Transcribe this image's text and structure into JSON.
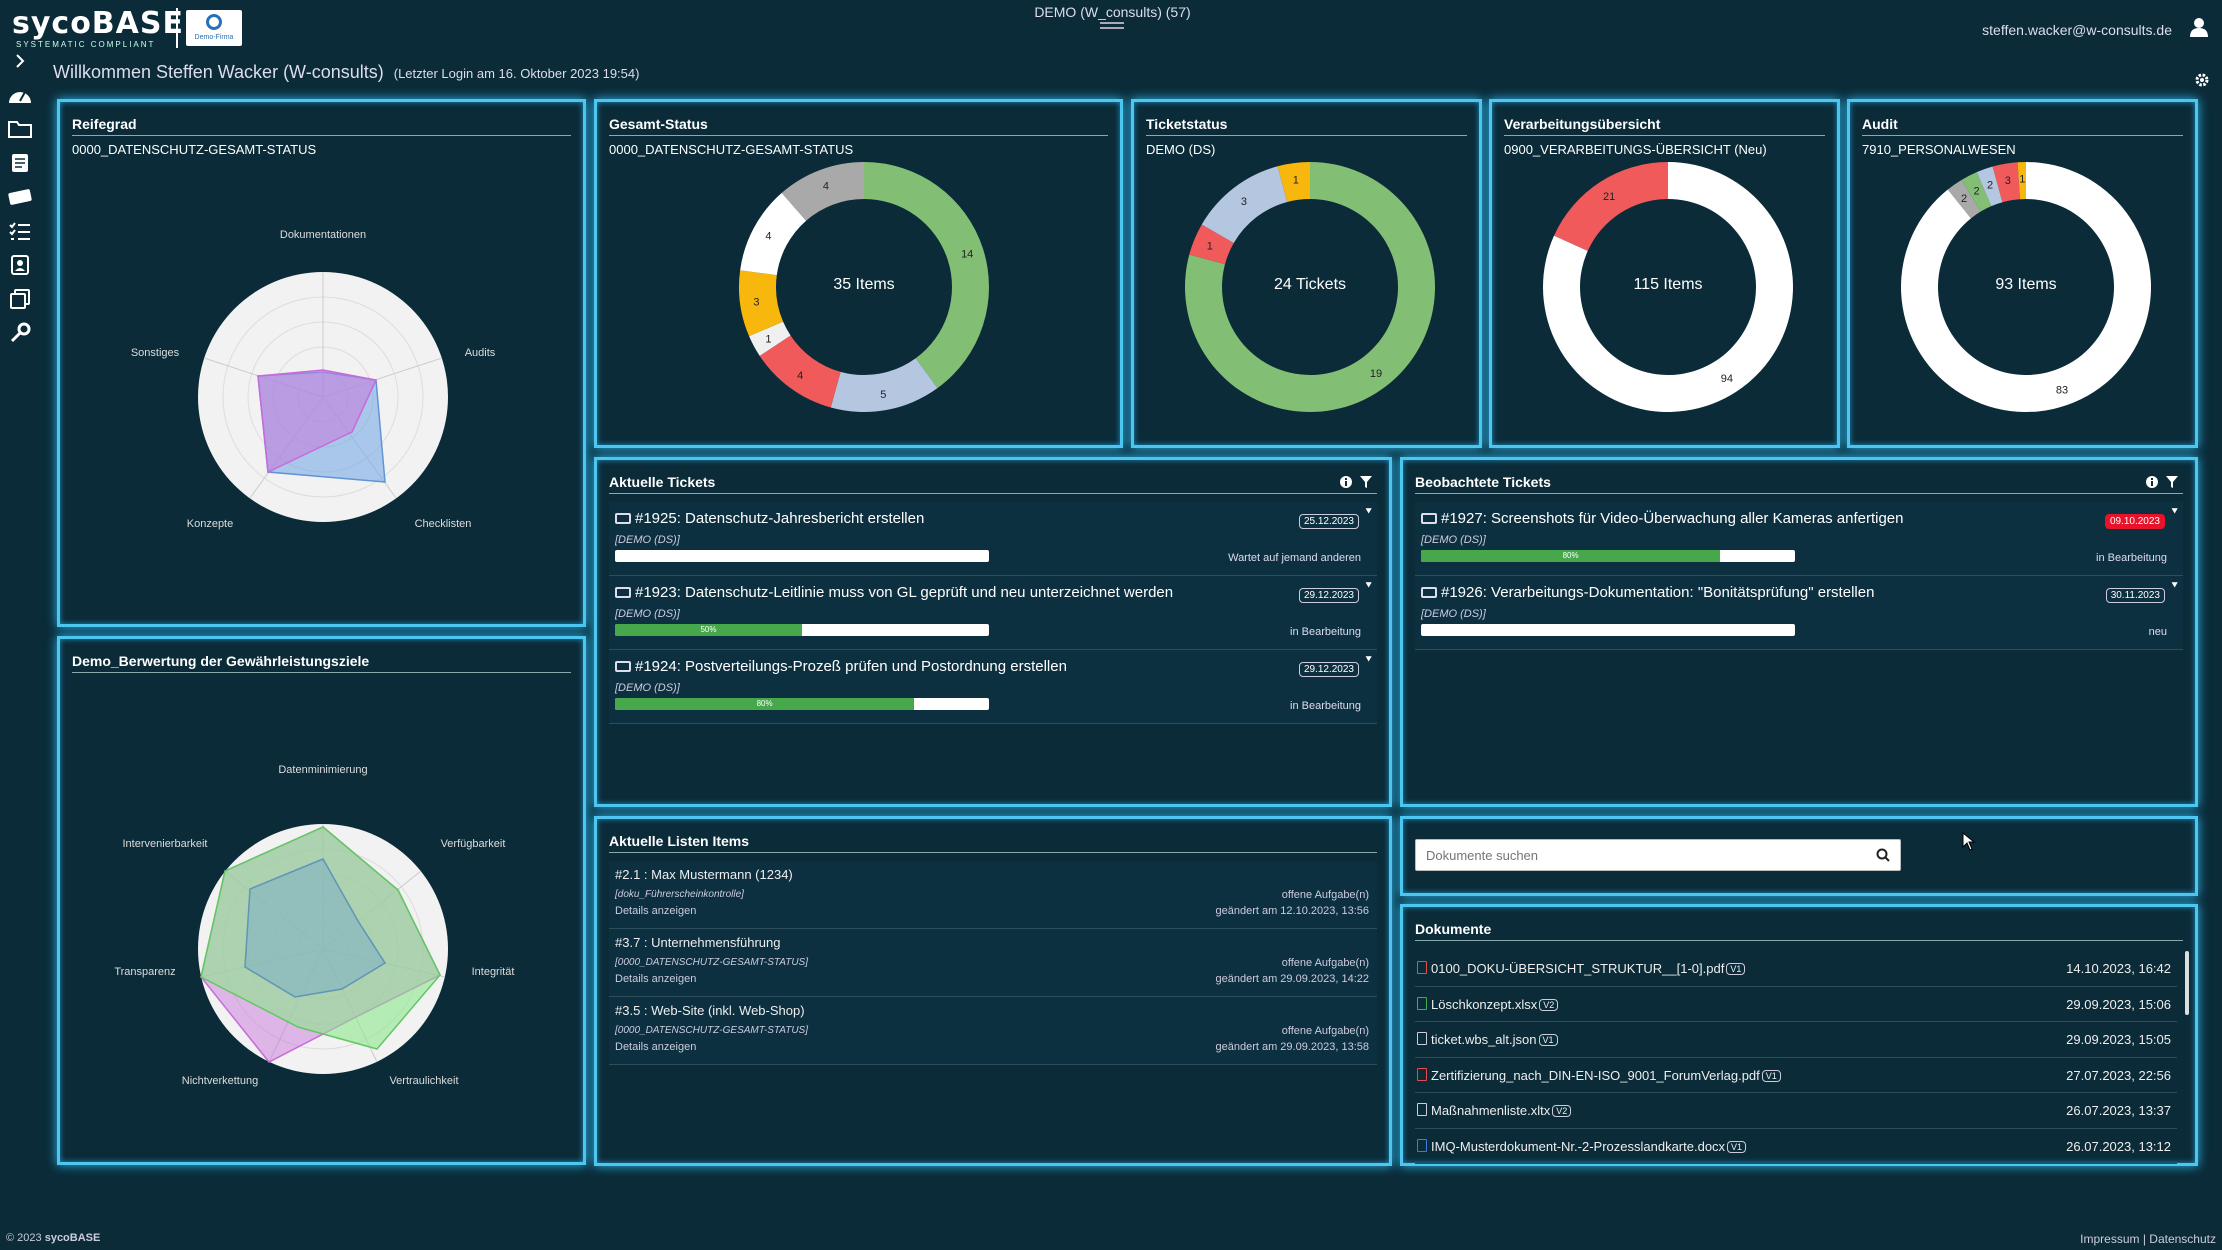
{
  "header": {
    "brand": "sycoBASE",
    "brand_sub": "SYSTEMATIC COMPLIANT",
    "firm_logo_text": "Demo-Firma",
    "tenant": "DEMO (W_consults) (57)",
    "user_email": "steffen.wacker@w-consults.de",
    "welcome": "Willkommen Steffen Wacker (W-consults)",
    "last_login": "(Letzter Login am 16. Oktober 2023 19:54)"
  },
  "sidebar": [
    "chevron-right",
    "dashboard",
    "folder",
    "document",
    "ticket",
    "list",
    "contact",
    "copy",
    "wrench"
  ],
  "reifegrad": {
    "title": "Reifegrad",
    "subtitle": "0000_DATENSCHUTZ-GESAMT-STATUS",
    "axes": [
      "Dokumentationen",
      "Audits",
      "Checklisten",
      "Konzepte",
      "Sonstiges"
    ]
  },
  "gesamt": {
    "title": "Gesamt-Status",
    "subtitle": "0000_DATENSCHUTZ-GESAMT-STATUS",
    "center": "35 Items",
    "segments": [
      {
        "value": 14,
        "color": "#82bf74"
      },
      {
        "value": 5,
        "color": "#b4c6e0"
      },
      {
        "value": 4,
        "color": "#f05a5a"
      },
      {
        "value": 1,
        "color": "#f0f0f0"
      },
      {
        "value": 3,
        "color": "#f8b70c"
      },
      {
        "value": 4,
        "color": "#ffffff"
      },
      {
        "value": 4,
        "color": "#a9a9a9"
      }
    ]
  },
  "ticketstatus": {
    "title": "Ticketstatus",
    "subtitle": "DEMO (DS)",
    "center": "24 Tickets",
    "segments": [
      {
        "value": 19,
        "color": "#82bf74"
      },
      {
        "value": 1,
        "color": "#f05a5a"
      },
      {
        "value": 3,
        "color": "#b4c6e0"
      },
      {
        "value": 1,
        "color": "#f8b70c"
      }
    ]
  },
  "verarbeitung": {
    "title": "Verarbeitungsübersicht",
    "subtitle": "0900_VERARBEITUNGS-ÜBERSICHT (Neu)",
    "center": "115 Items",
    "segments": [
      {
        "value": 94,
        "color": "#ffffff"
      },
      {
        "value": 21,
        "color": "#f05a5a"
      }
    ]
  },
  "audit": {
    "title": "Audit",
    "subtitle": "7910_PERSONALWESEN",
    "center": "93 Items",
    "segments": [
      {
        "value": 83,
        "color": "#ffffff"
      },
      {
        "value": 2,
        "color": "#a9a9a9"
      },
      {
        "value": 2,
        "color": "#82bf74"
      },
      {
        "value": 2,
        "color": "#b4c6e0"
      },
      {
        "value": 3,
        "color": "#f05a5a"
      },
      {
        "value": 1,
        "color": "#f8b70c"
      }
    ]
  },
  "gewaehr": {
    "title": "Demo_Berwertung der Gewährleistungsziele",
    "axes": [
      "Datenminimierung",
      "Verfügbarkeit",
      "Integrität",
      "Vertraulichkeit",
      "Nichtverkettung",
      "Transparenz",
      "Intervenierbarkeit"
    ]
  },
  "aktuelle_tickets": {
    "title": "Aktuelle Tickets",
    "items": [
      {
        "title": "#1925: Datenschutz-Jahresbericht erstellen",
        "project": "[DEMO (DS)]",
        "date": "25.12.2023",
        "status": "Wartet auf jemand anderen",
        "progress": 0,
        "progress_label": ""
      },
      {
        "title": "#1923: Datenschutz-Leitlinie muss von GL geprüft und neu unterzeichnet werden",
        "project": "[DEMO (DS)]",
        "date": "29.12.2023",
        "status": "in Bearbeitung",
        "progress": 50,
        "progress_label": "50%"
      },
      {
        "title": "#1924: Postverteilungs-Prozeß prüfen und Postordnung erstellen",
        "project": "[DEMO (DS)]",
        "date": "29.12.2023",
        "status": "in Bearbeitung",
        "progress": 80,
        "progress_label": "80%"
      }
    ]
  },
  "beobachtete_tickets": {
    "title": "Beobachtete Tickets",
    "items": [
      {
        "title": "#1927: Screenshots für Video-Überwachung aller Kameras anfertigen",
        "project": "[DEMO (DS)]",
        "date": "09.10.2023",
        "status": "in Bearbeitung",
        "progress": 80,
        "progress_label": "80%"
      },
      {
        "title": "#1926: Verarbeitungs-Dokumentation: \"Bonitätsprüfung\" erstellen",
        "project": "[DEMO (DS)]",
        "date": "30.11.2023",
        "status": "neu",
        "progress": 0,
        "progress_label": ""
      }
    ]
  },
  "listen_items": {
    "title": "Aktuelle Listen Items",
    "items": [
      {
        "name": "#2.1 : Max Mustermann (1234)",
        "list": "[doku_Führerscheinkontrolle]",
        "details": "Details anzeigen",
        "tasks": "offene Aufgabe(n)",
        "changed": "geändert am 12.10.2023, 13:56"
      },
      {
        "name": "#3.7 : Unternehmensführung",
        "list": "[0000_DATENSCHUTZ-GESAMT-STATUS]",
        "details": "Details anzeigen",
        "tasks": "offene Aufgabe(n)",
        "changed": "geändert am 29.09.2023, 14:22"
      },
      {
        "name": "#3.5 : Web-Site (inkl. Web-Shop)",
        "list": "[0000_DATENSCHUTZ-GESAMT-STATUS]",
        "details": "Details anzeigen",
        "tasks": "offene Aufgabe(n)",
        "changed": "geändert am 29.09.2023, 13:58"
      }
    ]
  },
  "search": {
    "placeholder": "Dokumente suchen"
  },
  "dokumente": {
    "title": "Dokumente",
    "items": [
      {
        "name": "0100_DOKU-ÜBERSICHT_STRUKTUR__[1-0].pdf",
        "version": "V1",
        "date": "14.10.2023, 16:42",
        "color": "#e64a4a"
      },
      {
        "name": "Löschkonzept.xlsx",
        "version": "V2",
        "date": "29.09.2023, 15:06",
        "color": "#3fae52"
      },
      {
        "name": "ticket.wbs_alt.json",
        "version": "V1",
        "date": "29.09.2023, 15:05",
        "color": "#ccccdd"
      },
      {
        "name": "Zertifizierung_nach_DIN-EN-ISO_9001_ForumVerlag.pdf",
        "version": "V1",
        "date": "27.07.2023, 22:56",
        "color": "#e64a4a"
      },
      {
        "name": "Maßnahmenliste.xltx",
        "version": "V2",
        "date": "26.07.2023, 13:37",
        "color": "#ccccdd"
      },
      {
        "name": "IMQ-Musterdokument-Nr.-2-Prozesslandkarte.docx",
        "version": "V1",
        "date": "26.07.2023, 13:12",
        "color": "#3f7ae0"
      }
    ]
  },
  "footer": {
    "copyright": "© 2023",
    "brand": "sycoBASE",
    "links": "Impressum | Datenschutz"
  }
}
